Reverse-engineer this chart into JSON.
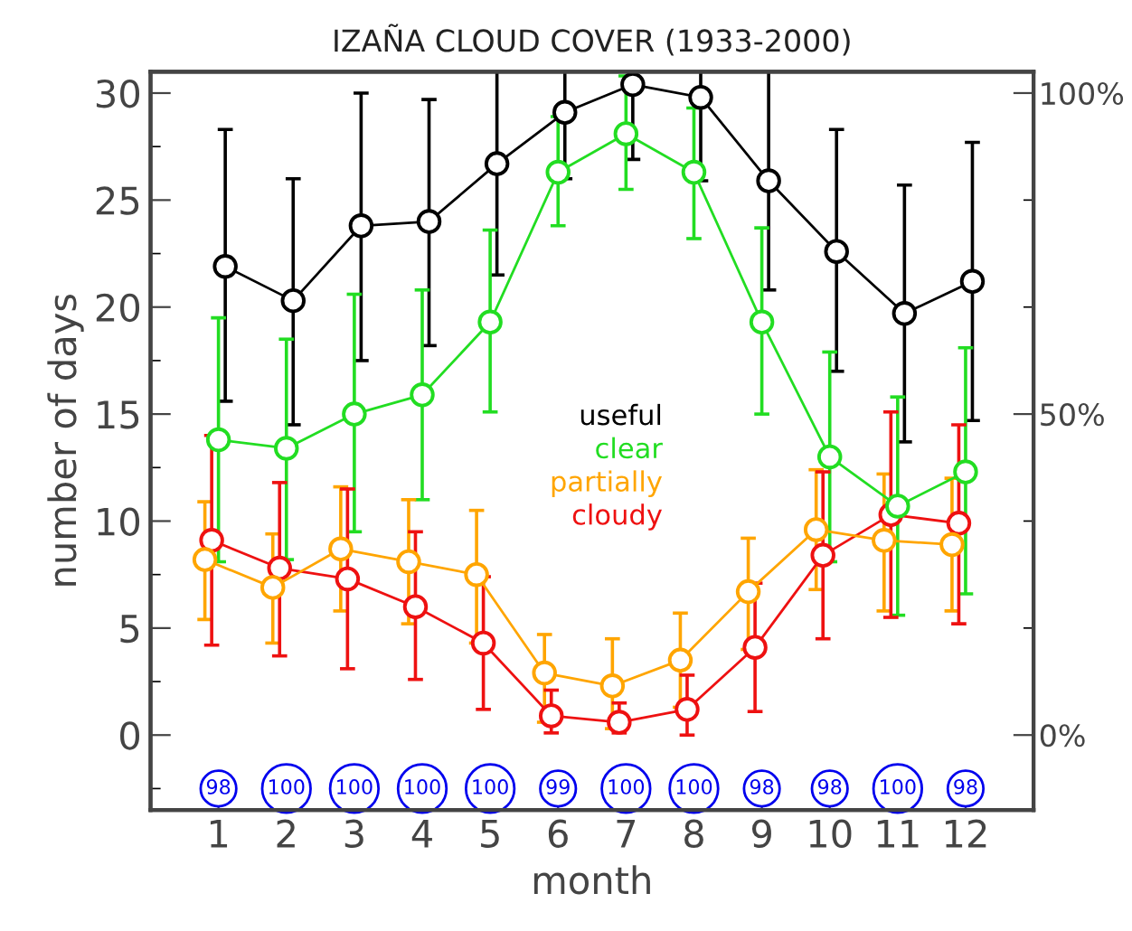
{
  "chart_data": {
    "type": "line",
    "title": "IZAÑA CLOUD COVER (1933-2000)",
    "xlabel": "month",
    "ylabel": "number of days",
    "x": [
      1,
      2,
      3,
      4,
      5,
      6,
      7,
      8,
      9,
      10,
      11,
      12
    ],
    "xlim": [
      0,
      13
    ],
    "xticks": [
      1,
      2,
      3,
      4,
      5,
      6,
      7,
      8,
      9,
      10,
      11,
      12
    ],
    "ylim": [
      -3.5,
      31
    ],
    "yticks": [
      0,
      5,
      10,
      15,
      20,
      25,
      30
    ],
    "y2lim": [
      -11.67,
      103.33
    ],
    "y2ticks": [
      {
        "value": 0,
        "label": "0%"
      },
      {
        "value": 50,
        "label": "50%"
      },
      {
        "value": 100,
        "label": "100%"
      }
    ],
    "marker": "circle",
    "line_style": "solid",
    "grid": false,
    "legend": "center",
    "series": [
      {
        "name": "useful",
        "color": "#000000",
        "x": [
          1.1,
          2.1,
          3.1,
          4.1,
          5.1,
          6.1,
          7.1,
          8.1,
          9.1,
          10.1,
          11.1,
          12.1
        ],
        "values": [
          21.9,
          20.3,
          23.8,
          24.0,
          26.7,
          29.1,
          30.4,
          29.8,
          25.9,
          22.6,
          19.7,
          21.2
        ],
        "errors": [
          [
            15.6,
            28.3
          ],
          [
            14.5,
            26.0
          ],
          [
            17.5,
            30.0
          ],
          [
            18.2,
            29.7
          ],
          [
            21.5,
            31
          ],
          [
            26.0,
            31
          ],
          [
            26.9,
            31
          ],
          [
            25.9,
            31
          ],
          [
            20.8,
            31
          ],
          [
            17.0,
            28.3
          ],
          [
            13.7,
            25.7
          ],
          [
            14.7,
            27.7
          ]
        ]
      },
      {
        "name": "clear",
        "color": "#22dd22",
        "values": [
          13.8,
          13.4,
          15.0,
          15.9,
          19.3,
          26.3,
          28.1,
          26.3,
          19.3,
          13.0,
          10.7,
          12.3
        ],
        "errors": [
          [
            8.1,
            19.5
          ],
          [
            8.2,
            18.5
          ],
          [
            9.5,
            20.6
          ],
          [
            11.0,
            20.8
          ],
          [
            15.1,
            23.6
          ],
          [
            23.8,
            28.9
          ],
          [
            25.5,
            30.8
          ],
          [
            23.2,
            29.3
          ],
          [
            15.0,
            23.7
          ],
          [
            8.1,
            17.9
          ],
          [
            5.6,
            15.8
          ],
          [
            6.6,
            18.1
          ]
        ]
      },
      {
        "name": "partially",
        "color": "#ffa500",
        "x": [
          0.8,
          1.8,
          2.8,
          3.8,
          4.8,
          5.8,
          6.8,
          7.8,
          8.8,
          9.8,
          10.8,
          11.8
        ],
        "values": [
          8.2,
          6.9,
          8.7,
          8.1,
          7.5,
          2.9,
          2.3,
          3.5,
          6.7,
          9.6,
          9.1,
          8.9
        ],
        "errors": [
          [
            5.4,
            10.9
          ],
          [
            4.3,
            9.4
          ],
          [
            5.8,
            11.6
          ],
          [
            5.2,
            11.0
          ],
          [
            4.3,
            10.5
          ],
          [
            0.6,
            4.7
          ],
          [
            0.3,
            4.5
          ],
          [
            1.3,
            5.7
          ],
          [
            4.0,
            9.2
          ],
          [
            6.8,
            12.4
          ],
          [
            5.8,
            12.2
          ],
          [
            5.8,
            12.0
          ]
        ]
      },
      {
        "name": "cloudy",
        "color": "#ee1111",
        "x": [
          0.9,
          1.9,
          2.9,
          3.9,
          4.9,
          5.9,
          6.9,
          7.9,
          8.9,
          9.9,
          10.9,
          11.9
        ],
        "values": [
          9.1,
          7.8,
          7.3,
          6.0,
          4.3,
          0.9,
          0.6,
          1.2,
          4.1,
          8.4,
          10.3,
          9.9
        ],
        "errors": [
          [
            4.2,
            14.0
          ],
          [
            3.7,
            11.8
          ],
          [
            3.1,
            11.5
          ],
          [
            2.6,
            9.5
          ],
          [
            1.2,
            7.4
          ],
          [
            0.1,
            2.1
          ],
          [
            0.1,
            1.5
          ],
          [
            0.0,
            2.8
          ],
          [
            1.1,
            7.1
          ],
          [
            4.5,
            12.3
          ],
          [
            5.5,
            15.1
          ],
          [
            5.2,
            14.5
          ]
        ]
      }
    ],
    "annotations": [
      {
        "text": "98",
        "x": 1,
        "y": -2.5
      },
      {
        "text": "100",
        "x": 2,
        "y": -2.5
      },
      {
        "text": "100",
        "x": 3,
        "y": -2.5
      },
      {
        "text": "100",
        "x": 4,
        "y": -2.5
      },
      {
        "text": "100",
        "x": 5,
        "y": -2.5
      },
      {
        "text": "99",
        "x": 6,
        "y": -2.5
      },
      {
        "text": "100",
        "x": 7,
        "y": -2.5
      },
      {
        "text": "100",
        "x": 8,
        "y": -2.5
      },
      {
        "text": "98",
        "x": 9,
        "y": -2.5
      },
      {
        "text": "98",
        "x": 10,
        "y": -2.5
      },
      {
        "text": "100",
        "x": 11,
        "y": -2.5
      },
      {
        "text": "98",
        "x": 12,
        "y": -2.5
      }
    ]
  }
}
